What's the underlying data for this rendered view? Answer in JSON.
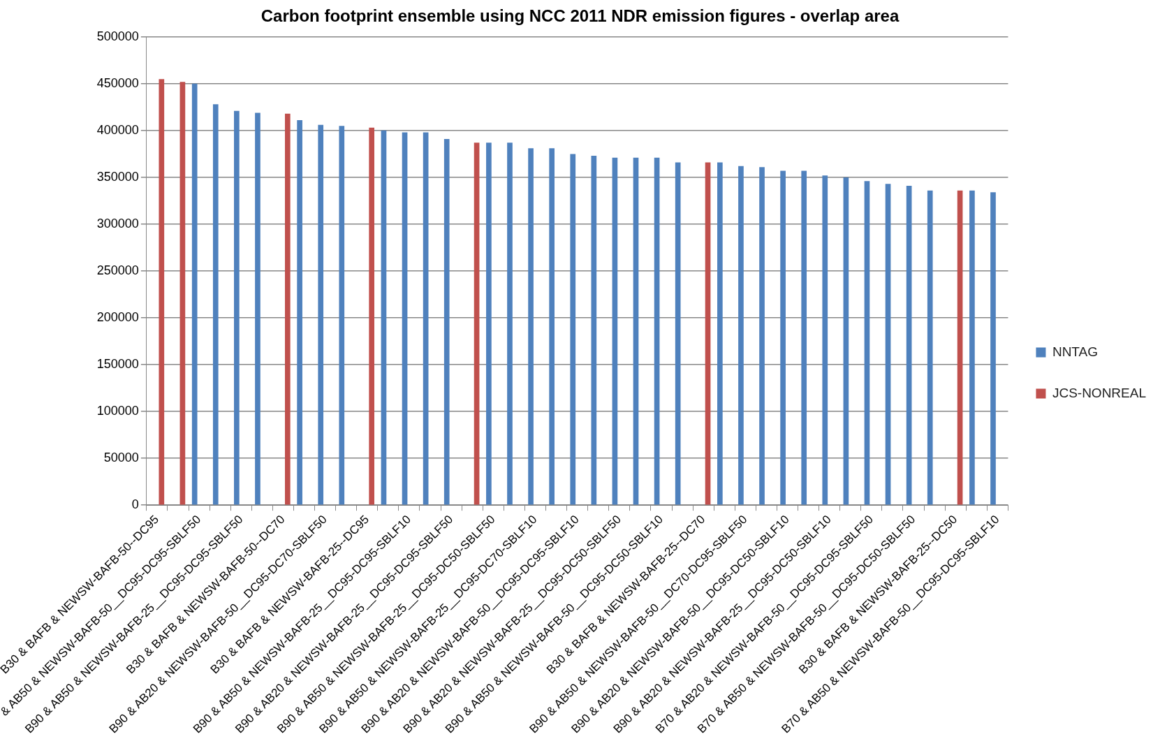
{
  "chart_data": {
    "type": "bar",
    "title": "Carbon footprint ensemble using NCC 2011 NDR emission figures - overlap area",
    "categories": [
      "B30 & BAFB & NEWSW-BAFB-50--DC95",
      null,
      "& AB50 & NEWSW-BAFB-50__DC95-DC95-SBLF50",
      null,
      "B90 & AB50 & NEWSW-BAFB-25__DC95-DC95-SBLF50",
      null,
      "B30 & BAFB & NEWSW-BAFB-50--DC70",
      null,
      "B90 & AB20 & NEWSW-BAFB-50__DC95-DC70-SBLF50",
      null,
      "B30 & BAFB & NEWSW-BAFB-25--DC95",
      null,
      "B90 & AB50 & NEWSW-BAFB-25__DC95-DC95-SBLF10",
      null,
      "B90 & AB20 & NEWSW-BAFB-25__DC95-DC95-SBLF50",
      null,
      "B90 & AB50 & NEWSW-BAFB-25__DC95-DC50-SBLF50",
      null,
      "B90 & AB50 & NEWSW-BAFB-25__DC95-DC70-SBLF10",
      null,
      "B90 & AB20 & NEWSW-BAFB-50__DC95-DC95-SBLF10",
      null,
      "B90 & AB20 & NEWSW-BAFB-25__DC95-DC50-SBLF50",
      null,
      "B90 & AB50 & NEWSW-BAFB-50__DC95-DC50-SBLF10",
      null,
      "B30 & BAFB & NEWSW-BAFB-25--DC70",
      null,
      "B90 & AB50 & NEWSW-BAFB-50__DC70-DC95-SBLF50",
      null,
      "B90 & AB20 & NEWSW-BAFB-50__DC95-DC50-SBLF10",
      null,
      "B90 & AB20 & NEWSW-BAFB-25__DC95-DC50-SBLF10",
      null,
      "B70 & AB20 & NEWSW-BAFB-50__DC95-DC95-SBLF50",
      null,
      "B70 & AB50 & NEWSW-BAFB-50__DC95-DC50-SBLF50",
      null,
      "B30 & BAFB & NEWSW-BAFB-25--DC50",
      null,
      "B70 & AB50 & NEWSW-BAFB-50__DC95-DC95-SBLF10"
    ],
    "series": [
      {
        "name": "NNTAG",
        "color": "#4f81bd",
        "values": [
          null,
          null,
          450000,
          428000,
          421000,
          419000,
          null,
          411000,
          406000,
          405000,
          null,
          400000,
          398000,
          398000,
          391000,
          null,
          387000,
          387000,
          381000,
          381000,
          375000,
          373000,
          371000,
          371000,
          371000,
          366000,
          null,
          366000,
          362000,
          361000,
          357000,
          357000,
          352000,
          350000,
          346000,
          343000,
          341000,
          336000,
          null,
          336000,
          334000
        ]
      },
      {
        "name": "JCS-NONREAL",
        "color": "#c0504d",
        "values": [
          455000,
          452000,
          null,
          null,
          null,
          null,
          418000,
          null,
          null,
          null,
          403000,
          null,
          null,
          null,
          null,
          387000,
          null,
          null,
          null,
          null,
          null,
          null,
          null,
          null,
          null,
          null,
          366000,
          null,
          null,
          null,
          null,
          null,
          null,
          null,
          null,
          null,
          null,
          null,
          336000,
          null,
          null
        ]
      }
    ],
    "ylim": [
      0,
      500000
    ],
    "yticks": [
      0,
      50000,
      100000,
      150000,
      200000,
      250000,
      300000,
      350000,
      400000,
      450000,
      500000
    ],
    "grid": "y",
    "legend": "right"
  }
}
